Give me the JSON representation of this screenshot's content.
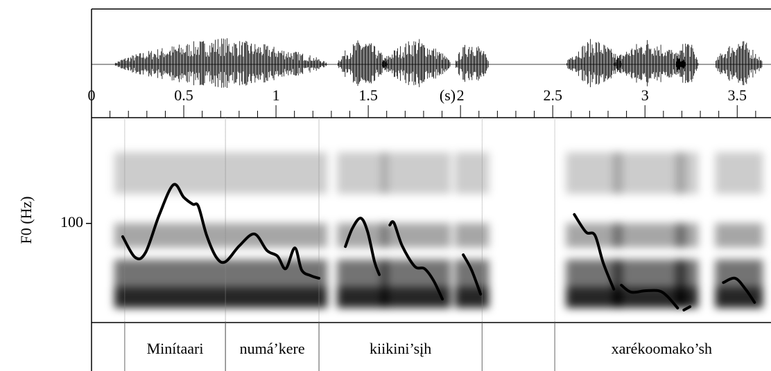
{
  "chart_data": {
    "type": "pitch-track",
    "x_label": "(s)",
    "y_label": "F0 (Hz)",
    "xlim": [
      0,
      3.67
    ],
    "xticks": [
      0,
      0.5,
      1,
      1.5,
      2,
      2.5,
      3,
      3.5
    ],
    "minor_xticks": [
      0.1,
      0.2,
      0.3,
      0.4,
      0.6,
      0.7,
      0.8,
      0.9,
      1.1,
      1.2,
      1.3,
      1.4,
      1.6,
      1.7,
      1.8,
      1.9,
      2.1,
      2.2,
      2.3,
      2.4,
      2.6,
      2.7,
      2.8,
      2.9,
      3.1,
      3.2,
      3.3,
      3.4,
      3.6
    ],
    "ylim": [
      70,
      132
    ],
    "yticks": [
      100
    ],
    "color": "#000000",
    "segments": [
      {
        "x": [
          0.169,
          0.237,
          0.293,
          0.368,
          0.444,
          0.5,
          0.549,
          0.579,
          0.624,
          0.677,
          0.726,
          0.801,
          0.883,
          0.951,
          1.008,
          1.053,
          1.102,
          1.139,
          1.188,
          1.233
        ],
        "values": [
          96.0,
          89.7,
          91.2,
          102.7,
          111.7,
          107.9,
          105.8,
          105.2,
          96.4,
          89.7,
          88.4,
          93.2,
          96.8,
          91.8,
          90.1,
          86.3,
          92.6,
          85.9,
          84.2,
          83.4
        ]
      },
      {
        "x": [
          1.376,
          1.414,
          1.459,
          1.496,
          1.534,
          1.56
        ],
        "values": [
          93.0,
          98.5,
          101.6,
          97.6,
          88.4,
          84.5
        ]
      },
      {
        "x": [
          1.617,
          1.639,
          1.684,
          1.752,
          1.805,
          1.853,
          1.902
        ],
        "values": [
          99.5,
          100.2,
          93.2,
          87.0,
          86.3,
          82.8,
          77.1
        ]
      },
      {
        "x": [
          2.015,
          2.06,
          2.109
        ],
        "values": [
          90.5,
          85.9,
          78.6
        ]
      },
      {
        "x": [
          2.617,
          2.68,
          2.729,
          2.774,
          2.831
        ],
        "values": [
          102.7,
          97.4,
          96.4,
          88.0,
          80.1
        ]
      },
      {
        "x": [
          2.872,
          2.925,
          3.0,
          3.075,
          3.12,
          3.177
        ],
        "values": [
          81.3,
          79.2,
          79.6,
          79.6,
          78.0,
          74.4
        ]
      },
      {
        "x": [
          3.211,
          3.244
        ],
        "values": [
          73.8,
          74.8
        ]
      },
      {
        "x": [
          3.425,
          3.489,
          3.545,
          3.594
        ],
        "values": [
          82.1,
          83.4,
          80.1,
          76.1
        ]
      }
    ],
    "words": [
      {
        "label": "Minítaari",
        "start": 0.18,
        "end": 0.726
      },
      {
        "label": "numá’kere",
        "start": 0.726,
        "end": 1.233
      },
      {
        "label": "kiikini’sįh",
        "start": 1.233,
        "end": 2.117
      },
      {
        "label": "xarékoomako’sh",
        "start": 2.511,
        "end": 3.67
      }
    ]
  }
}
